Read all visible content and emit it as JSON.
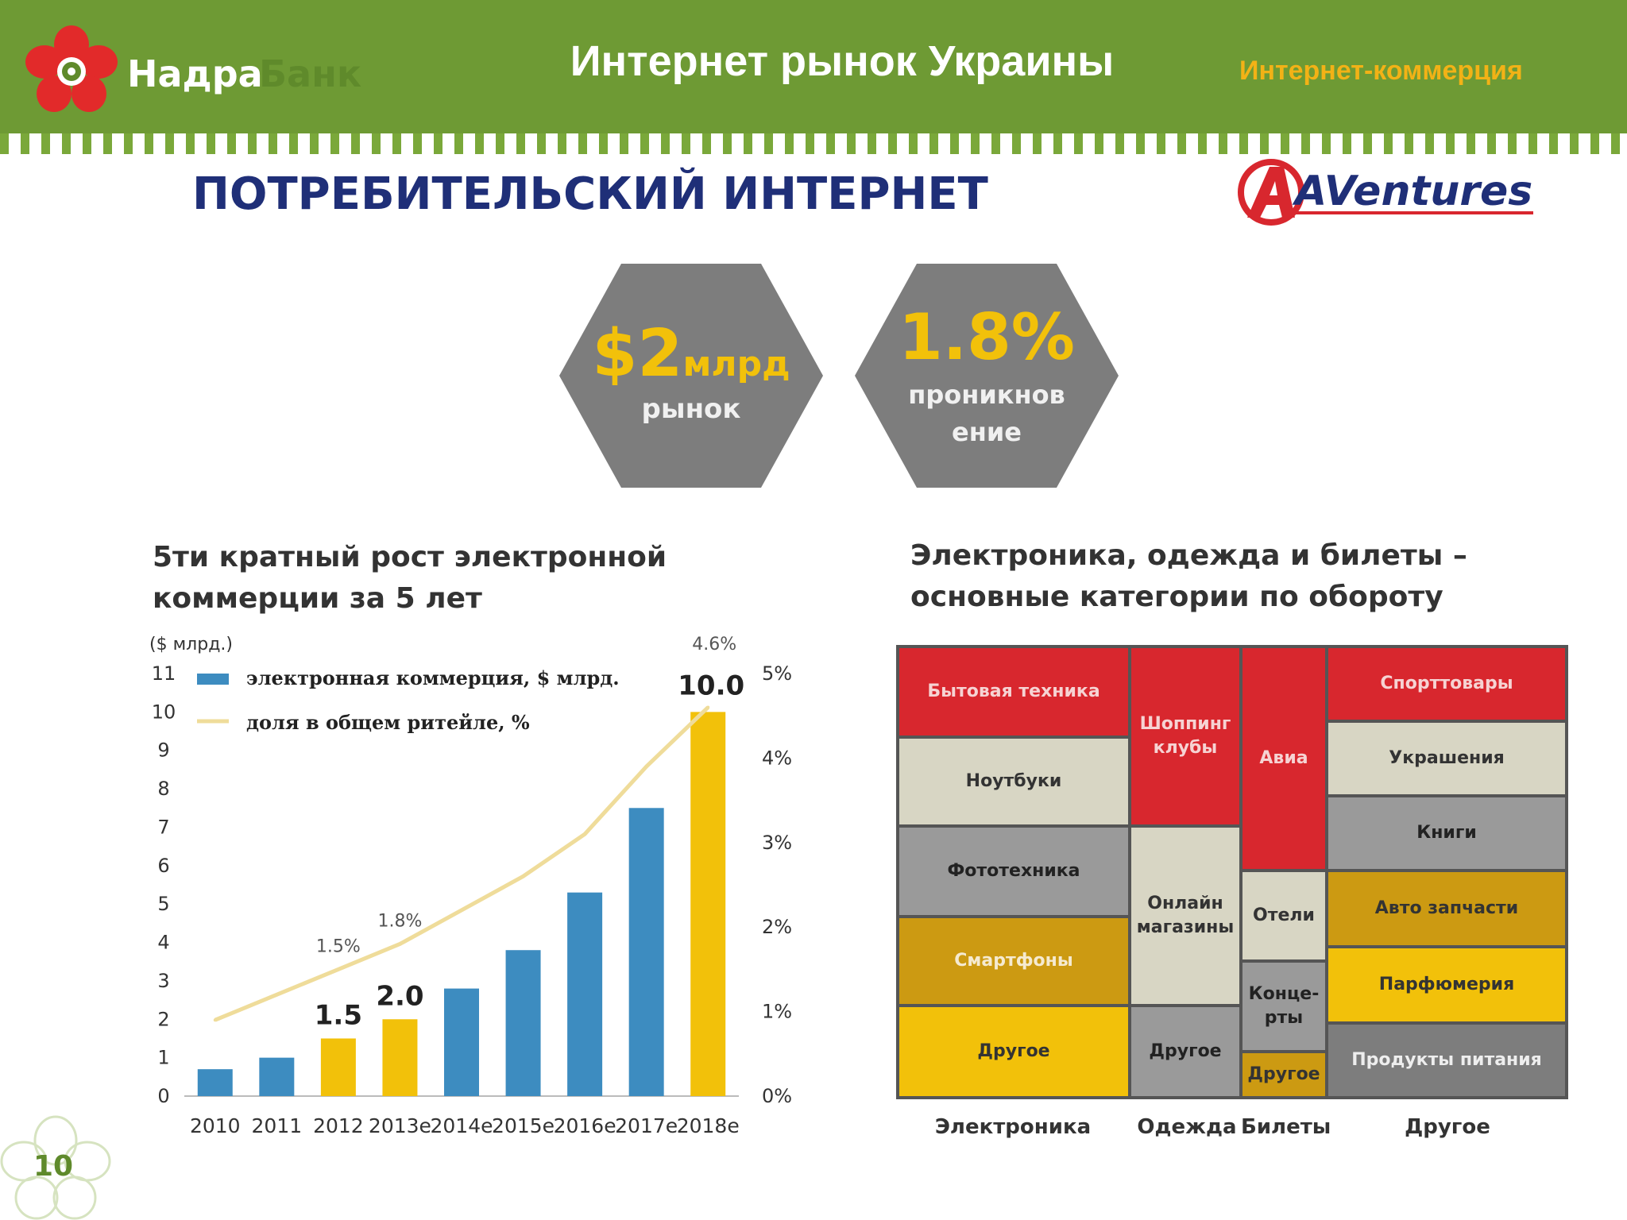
{
  "header": {
    "logo_part1": "Надра",
    "logo_part2": "Банк",
    "title": "Интернет рынок Украины",
    "tag": "Интернет-коммерция"
  },
  "section_title": "ПОТРЕБИТЕЛЬСКИЙ ИНТЕРНЕТ",
  "source_logo": "AVentures",
  "kpis": [
    {
      "value": "$2",
      "unit": "млрд",
      "label": "рынок"
    },
    {
      "value": "1.8%",
      "label_line1": "проникнов",
      "label_line2": "ение"
    }
  ],
  "page_number": "10",
  "colors": {
    "header": "#6e9a34",
    "blue": "#3d8cc0",
    "gold": "#f2c10a",
    "line": "#efdc9a",
    "red": "#d8272e",
    "title_navy": "#1f2f78"
  },
  "chart_data": [
    {
      "type": "bar",
      "title_line1": "5ти кратный рост электронной",
      "title_line2": "коммерции за 5 лет",
      "ylabel": "($ млрд.)",
      "ylim": [
        0,
        11
      ],
      "y2lim": [
        0,
        5
      ],
      "yticks": [
        "0",
        "1",
        "2",
        "3",
        "4",
        "5",
        "6",
        "7",
        "8",
        "9",
        "10",
        "11"
      ],
      "y2ticks": [
        "0%",
        "1%",
        "2%",
        "3%",
        "4%",
        "5%"
      ],
      "categories": [
        "2010",
        "2011",
        "2012",
        "2013e",
        "2014e",
        "2015e",
        "2016e",
        "2017e",
        "2018e"
      ],
      "series": [
        {
          "name": "электронная коммерция, $   млрд.",
          "values": [
            0.7,
            1.0,
            1.5,
            2.0,
            2.8,
            3.8,
            5.3,
            7.5,
            10.0
          ],
          "highlight": [
            false,
            false,
            true,
            true,
            false,
            false,
            false,
            false,
            true
          ]
        },
        {
          "name": "доля в общем ритейле, %",
          "axis": "right",
          "values": [
            0.9,
            1.2,
            1.5,
            1.8,
            2.2,
            2.6,
            3.1,
            3.9,
            4.6
          ]
        }
      ],
      "bar_labels": [
        {
          "index": 2,
          "text": "1.5"
        },
        {
          "index": 3,
          "text": "2.0"
        },
        {
          "index": 8,
          "text": "10.0"
        }
      ],
      "line_labels": [
        {
          "index": 2,
          "text": "1.5%"
        },
        {
          "index": 3,
          "text": "1.8%"
        },
        {
          "index": 8,
          "text": "4.6%"
        }
      ],
      "legend": "top-left"
    },
    {
      "type": "treemap",
      "title_line1": "Электроника, одежда и билеты –",
      "title_line2": "основные категории по обороту",
      "groups": [
        {
          "name": "Электроника",
          "items": [
            "Бытовая техника",
            "Ноутбуки",
            "Фототехника",
            "Смартфоны",
            "Другое"
          ]
        },
        {
          "name": "Одежда",
          "items": [
            "Шоппинг клубы",
            "Онлайн магазины",
            "Другое"
          ]
        },
        {
          "name": "Билеты",
          "items": [
            "Авиа",
            "Отели",
            "Концерты",
            "Другое"
          ]
        },
        {
          "name": "Другое",
          "items": [
            "Спорттовары",
            "Украшения",
            "Книги",
            "Авто запчасти",
            "Парфюмерия",
            "Продукты питания"
          ]
        }
      ],
      "cells": [
        {
          "label": "Бытовая техника"
        },
        {
          "label": "Ноутбуки"
        },
        {
          "label": "Фототехника"
        },
        {
          "label": "Смартфоны"
        },
        {
          "label": "Другое"
        },
        {
          "label_line1": "Шоппинг",
          "label_line2": "клубы"
        },
        {
          "label_line1": "Онлайн",
          "label_line2": "магазины"
        },
        {
          "label": "Другое"
        },
        {
          "label": "Авиа"
        },
        {
          "label": "Отели"
        },
        {
          "label_line1": "Конце-",
          "label_line2": "рты"
        },
        {
          "label": "Другое"
        },
        {
          "label": "Спорттовары"
        },
        {
          "label": "Украшения"
        },
        {
          "label": "Книги"
        },
        {
          "label": "Авто запчасти"
        },
        {
          "label": "Парфюмерия"
        },
        {
          "label": "Продукты питания"
        }
      ]
    }
  ]
}
